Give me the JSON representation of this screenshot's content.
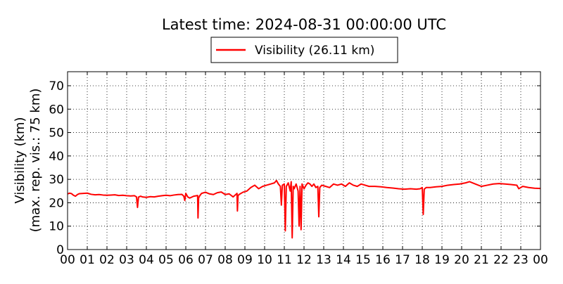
{
  "chart_data": {
    "type": "line",
    "title": "Latest time: 2024-08-31 00:00:00 UTC",
    "ylabel_line1": "Visibility (km)",
    "ylabel_line2": "(max. rep. vis.: 75 km)",
    "xlabel": "",
    "xlim": [
      0,
      24
    ],
    "ylim": [
      0,
      76
    ],
    "grid": true,
    "legend_placement": "top-center",
    "x_ticks": [
      0,
      1,
      2,
      3,
      4,
      5,
      6,
      7,
      8,
      9,
      10,
      11,
      12,
      13,
      14,
      15,
      16,
      17,
      18,
      19,
      20,
      21,
      22,
      23,
      24
    ],
    "x_tick_labels": [
      "00",
      "01",
      "02",
      "03",
      "04",
      "05",
      "06",
      "07",
      "08",
      "09",
      "10",
      "11",
      "12",
      "13",
      "14",
      "15",
      "16",
      "17",
      "18",
      "19",
      "20",
      "21",
      "22",
      "23",
      "00"
    ],
    "y_ticks": [
      0,
      10,
      20,
      30,
      40,
      50,
      60,
      70
    ],
    "y_tick_labels": [
      "0",
      "10",
      "20",
      "30",
      "40",
      "50",
      "60",
      "70"
    ],
    "series": [
      {
        "name": "Visibility (26.11 km)",
        "color": "#ff0000",
        "x": [
          0.0,
          0.1,
          0.2,
          0.3,
          0.4,
          0.5,
          0.6,
          0.8,
          1.0,
          1.2,
          1.4,
          1.6,
          1.8,
          2.0,
          2.2,
          2.4,
          2.6,
          2.8,
          3.0,
          3.2,
          3.4,
          3.5,
          3.55,
          3.6,
          3.7,
          3.8,
          4.0,
          4.2,
          4.4,
          4.6,
          4.8,
          5.0,
          5.2,
          5.4,
          5.6,
          5.8,
          5.9,
          5.95,
          6.0,
          6.1,
          6.2,
          6.4,
          6.6,
          6.62,
          6.65,
          6.7,
          6.8,
          7.0,
          7.2,
          7.4,
          7.6,
          7.8,
          8.0,
          8.2,
          8.4,
          8.6,
          8.62,
          8.65,
          8.7,
          8.9,
          9.1,
          9.3,
          9.5,
          9.7,
          9.9,
          10.1,
          10.3,
          10.5,
          10.6,
          10.7,
          10.8,
          10.85,
          10.9,
          11.0,
          11.05,
          11.1,
          11.2,
          11.3,
          11.35,
          11.4,
          11.45,
          11.5,
          11.6,
          11.7,
          11.75,
          11.8,
          11.85,
          11.9,
          12.0,
          12.1,
          12.2,
          12.3,
          12.4,
          12.5,
          12.6,
          12.7,
          12.75,
          12.8,
          12.9,
          13.1,
          13.3,
          13.5,
          13.7,
          13.9,
          14.1,
          14.3,
          14.5,
          14.7,
          14.9,
          15.1,
          15.3,
          15.6,
          15.9,
          16.2,
          16.5,
          16.8,
          17.1,
          17.4,
          17.7,
          17.9,
          18.0,
          18.05,
          18.1,
          18.2,
          18.4,
          18.7,
          19.0,
          19.3,
          19.6,
          19.9,
          20.2,
          20.4,
          20.7,
          21.0,
          21.3,
          21.6,
          21.9,
          22.2,
          22.5,
          22.8,
          22.9,
          23.1,
          23.4,
          23.7,
          24.0
        ],
        "y": [
          23.8,
          24.1,
          23.9,
          23.2,
          22.8,
          23.5,
          23.9,
          24.0,
          24.1,
          23.6,
          23.4,
          23.5,
          23.3,
          23.2,
          23.3,
          23.4,
          23.1,
          23.2,
          23.0,
          22.9,
          23.0,
          22.5,
          18.0,
          22.4,
          22.8,
          22.5,
          22.3,
          22.6,
          22.5,
          22.8,
          23.0,
          23.2,
          23.0,
          23.3,
          23.5,
          23.6,
          22.8,
          21.0,
          24.0,
          22.5,
          22.0,
          22.8,
          23.1,
          13.5,
          22.0,
          22.9,
          24.0,
          24.5,
          23.8,
          23.5,
          24.3,
          24.6,
          23.5,
          23.8,
          22.5,
          24.0,
          16.5,
          23.0,
          23.5,
          24.5,
          25.0,
          26.5,
          27.5,
          26.0,
          27.0,
          27.5,
          28.0,
          28.5,
          29.5,
          28.0,
          27.0,
          19.0,
          27.5,
          28.0,
          8.0,
          27.0,
          28.5,
          25.0,
          29.0,
          5.0,
          27.0,
          26.0,
          28.0,
          25.0,
          10.0,
          27.0,
          8.5,
          28.0,
          26.0,
          27.5,
          28.5,
          28.0,
          27.0,
          28.0,
          26.5,
          27.0,
          14.0,
          26.5,
          27.5,
          27.0,
          26.5,
          28.0,
          27.5,
          28.0,
          27.0,
          28.5,
          27.5,
          27.0,
          28.0,
          27.5,
          27.0,
          27.0,
          26.8,
          26.5,
          26.3,
          26.0,
          25.8,
          26.0,
          25.8,
          26.0,
          26.5,
          15.0,
          25.8,
          26.5,
          26.5,
          26.8,
          27.0,
          27.5,
          27.8,
          28.0,
          28.5,
          29.0,
          28.0,
          27.0,
          27.5,
          28.0,
          28.2,
          28.0,
          27.8,
          27.5,
          26.0,
          27.0,
          26.5,
          26.2,
          26.1
        ]
      }
    ]
  }
}
